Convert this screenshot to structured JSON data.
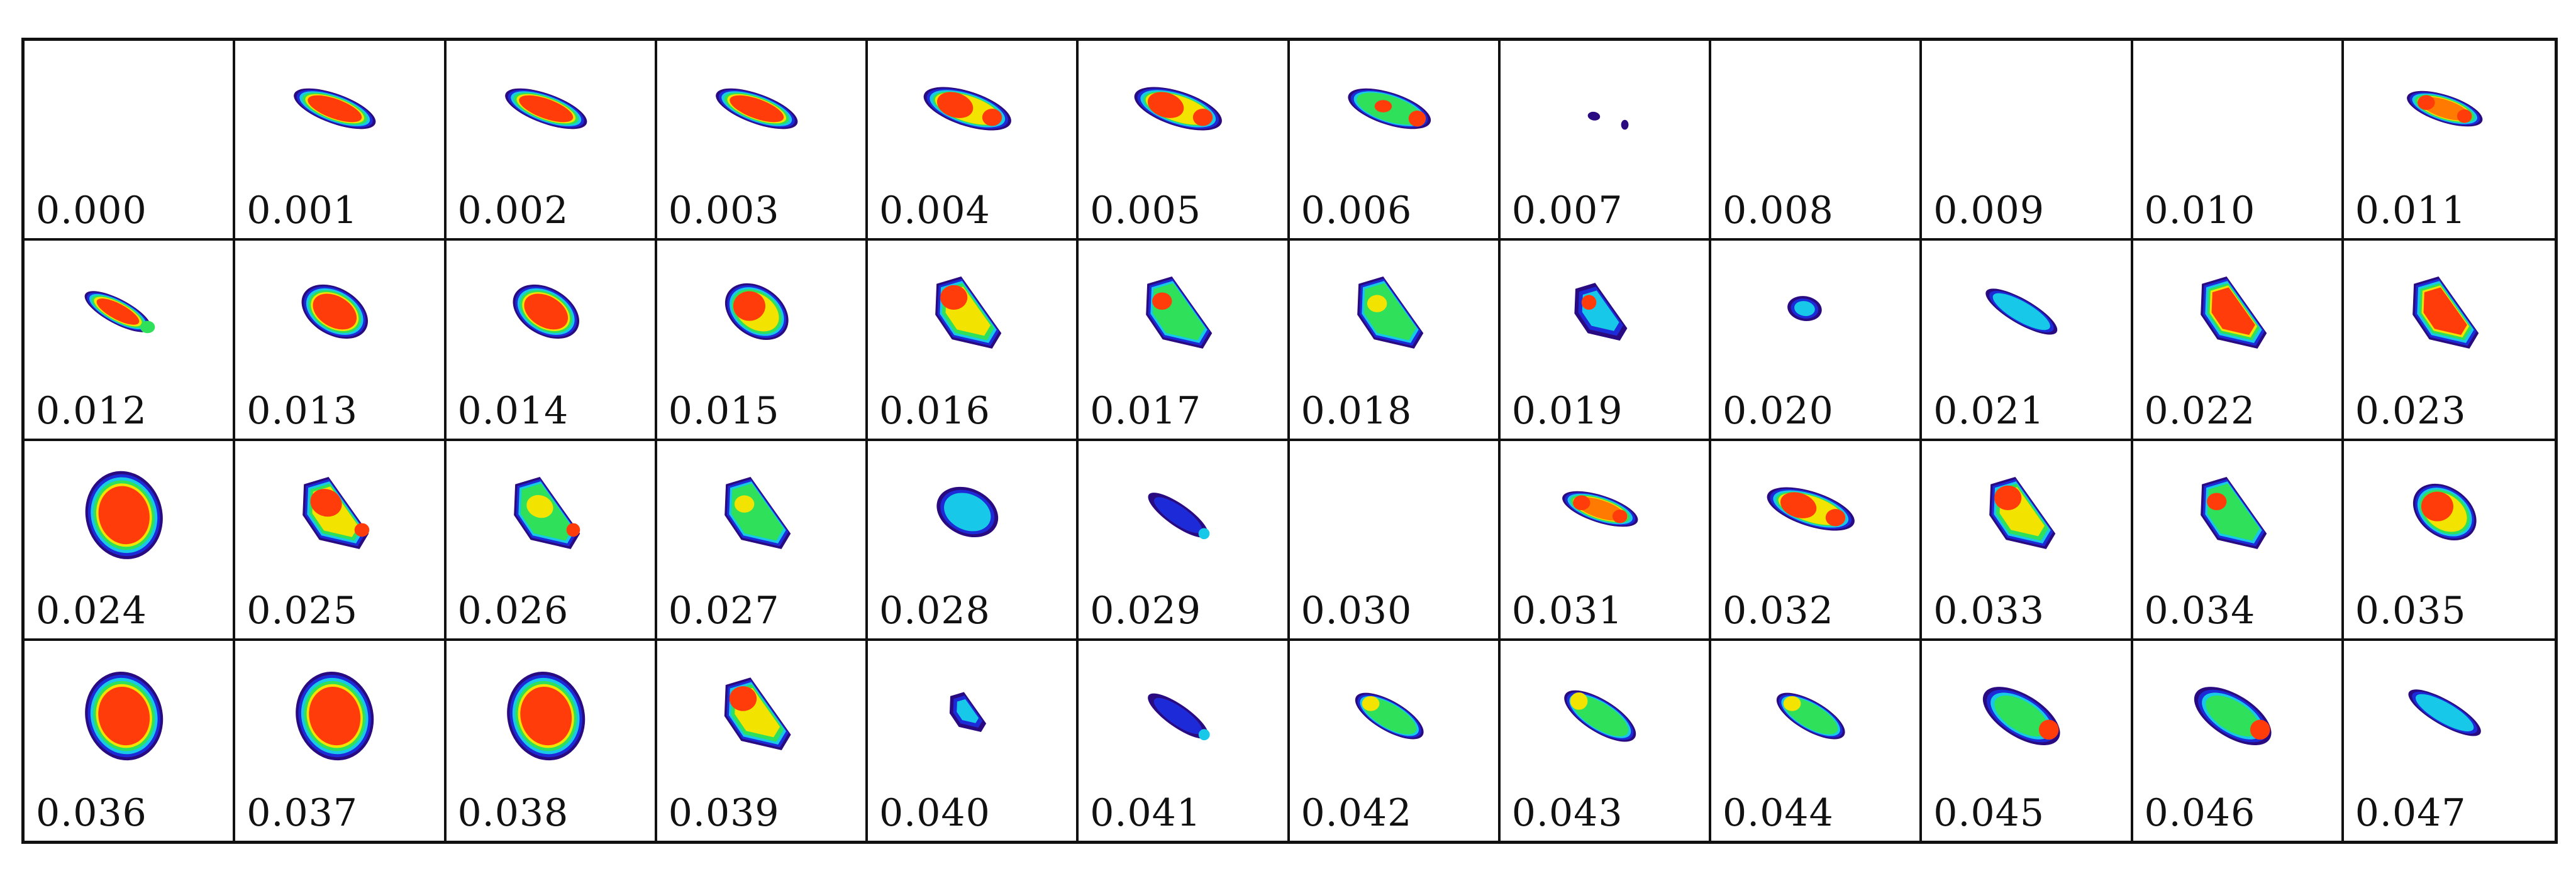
{
  "frames": [
    {
      "label": "0.000",
      "blob": "none"
    },
    {
      "label": "0.001",
      "blob": "elong-red"
    },
    {
      "label": "0.002",
      "blob": "elong-red"
    },
    {
      "label": "0.003",
      "blob": "elong-red"
    },
    {
      "label": "0.004",
      "blob": "elong-red-split"
    },
    {
      "label": "0.005",
      "blob": "elong-red-split"
    },
    {
      "label": "0.006",
      "blob": "elong-green-red"
    },
    {
      "label": "0.007",
      "blob": "specks"
    },
    {
      "label": "0.008",
      "blob": "none"
    },
    {
      "label": "0.009",
      "blob": "none"
    },
    {
      "label": "0.010",
      "blob": "none"
    },
    {
      "label": "0.011",
      "blob": "elong-mixed"
    },
    {
      "label": "0.012",
      "blob": "small-elong-red"
    },
    {
      "label": "0.013",
      "blob": "oval-red"
    },
    {
      "label": "0.014",
      "blob": "oval-red"
    },
    {
      "label": "0.015",
      "blob": "oval-red-green"
    },
    {
      "label": "0.016",
      "blob": "tri-red-green"
    },
    {
      "label": "0.017",
      "blob": "tri-green-red"
    },
    {
      "label": "0.018",
      "blob": "tri-green"
    },
    {
      "label": "0.019",
      "blob": "tri-blue"
    },
    {
      "label": "0.020",
      "blob": "tiny-cyan"
    },
    {
      "label": "0.021",
      "blob": "elong-cyan"
    },
    {
      "label": "0.022",
      "blob": "tri-red"
    },
    {
      "label": "0.023",
      "blob": "tri-red"
    },
    {
      "label": "0.024",
      "blob": "oval-red-big"
    },
    {
      "label": "0.025",
      "blob": "tri-red-yellow"
    },
    {
      "label": "0.026",
      "blob": "tri-green-yellow"
    },
    {
      "label": "0.027",
      "blob": "tri-green"
    },
    {
      "label": "0.028",
      "blob": "cyan-blob"
    },
    {
      "label": "0.029",
      "blob": "blue-streak"
    },
    {
      "label": "0.030",
      "blob": "none"
    },
    {
      "label": "0.031",
      "blob": "elong-mixed"
    },
    {
      "label": "0.032",
      "blob": "elong-red-split"
    },
    {
      "label": "0.033",
      "blob": "tri-red-green"
    },
    {
      "label": "0.034",
      "blob": "tri-green-red"
    },
    {
      "label": "0.035",
      "blob": "oval-red-green"
    },
    {
      "label": "0.036",
      "blob": "oval-red-big"
    },
    {
      "label": "0.037",
      "blob": "oval-red-big"
    },
    {
      "label": "0.038",
      "blob": "oval-red-big"
    },
    {
      "label": "0.039",
      "blob": "tri-red-green"
    },
    {
      "label": "0.040",
      "blob": "small-blue-cyan"
    },
    {
      "label": "0.041",
      "blob": "blue-streak"
    },
    {
      "label": "0.042",
      "blob": "elong-green"
    },
    {
      "label": "0.043",
      "blob": "elong-green-yellow"
    },
    {
      "label": "0.044",
      "blob": "elong-green"
    },
    {
      "label": "0.045",
      "blob": "elong-cyan-red"
    },
    {
      "label": "0.046",
      "blob": "elong-cyan-red"
    },
    {
      "label": "0.047",
      "blob": "elong-cyan"
    }
  ],
  "colors": {
    "red": "#ff3c0a",
    "orange": "#ff7a00",
    "yellow": "#f2e400",
    "green": "#2fe05a",
    "cyan": "#18c8e8",
    "blue": "#1d2ad8",
    "navy": "#2a0a80",
    "grid": "#111111"
  }
}
